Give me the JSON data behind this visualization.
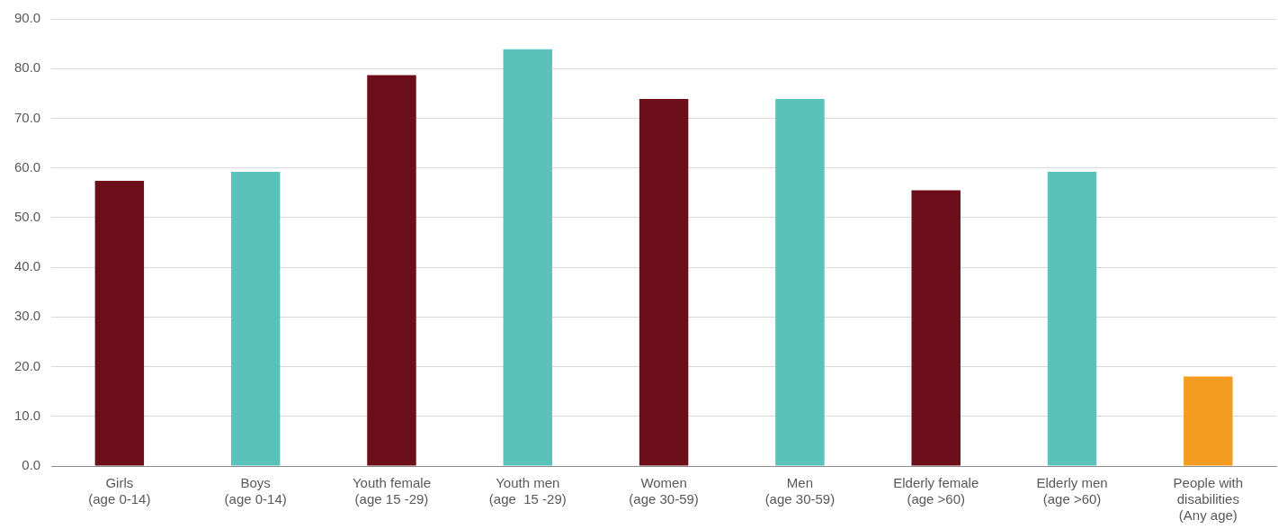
{
  "chart_data": {
    "type": "bar",
    "categories": [
      "Girls\n(age 0-14)",
      "Boys\n(age 0-14)",
      "Youth female\n(age 15 -29)",
      "Youth men\n(age  15 -29)",
      "Women\n(age 30-59)",
      "Men\n(age 30-59)",
      "Elderly female\n(age >60)",
      "Elderly men\n(age >60)",
      "People with\ndisabilities\n(Any age)"
    ],
    "values": [
      57.4,
      59.2,
      78.7,
      83.9,
      73.9,
      73.9,
      55.5,
      59.2,
      18.0
    ],
    "colors": [
      "#6d0f1b",
      "#5bc2bb",
      "#6d0f1b",
      "#5bc2bb",
      "#6d0f1b",
      "#5bc2bb",
      "#6d0f1b",
      "#5bc2bb",
      "#f39c1f"
    ],
    "ylim": [
      0,
      90
    ],
    "yticks": [
      {
        "value": 0,
        "label": "0.0"
      },
      {
        "value": 10,
        "label": "10.0"
      },
      {
        "value": 20,
        "label": "20.0"
      },
      {
        "value": 30,
        "label": "30.0"
      },
      {
        "value": 40,
        "label": "40.0"
      },
      {
        "value": 50,
        "label": "50.0"
      },
      {
        "value": 60,
        "label": "60.0"
      },
      {
        "value": 70,
        "label": "70.0"
      },
      {
        "value": 80,
        "label": "80.0"
      },
      {
        "value": 90,
        "label": "90.0"
      }
    ],
    "grid": "y"
  }
}
